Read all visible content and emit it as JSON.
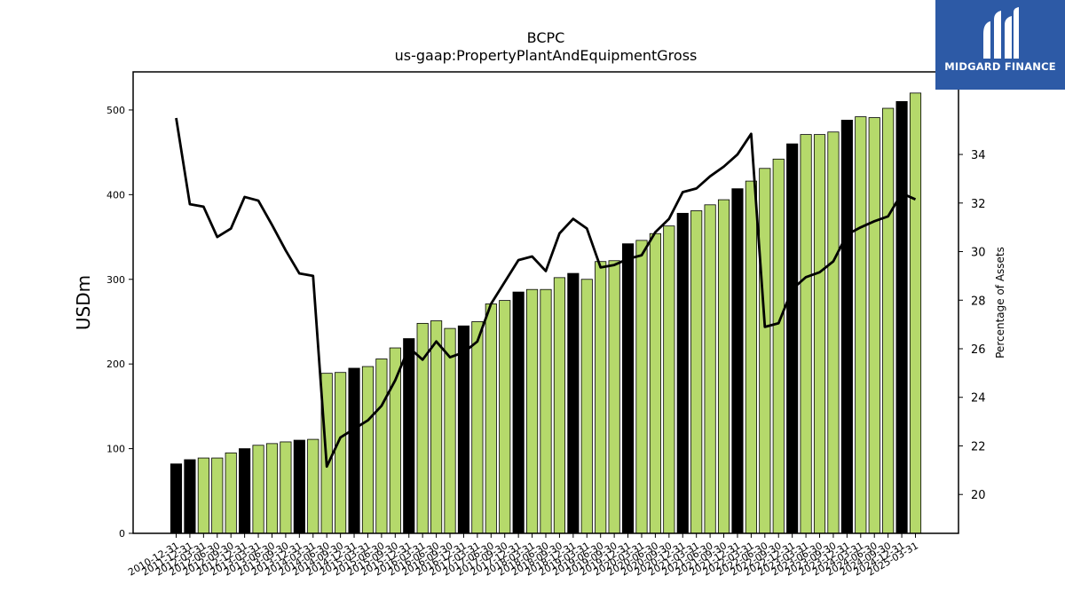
{
  "brand": {
    "name": "MIDGARD FINANCE",
    "bg_color": "#2d5aa6"
  },
  "chart_data": {
    "type": "bar",
    "title": "BCPC",
    "subtitle": "us-gaap:PropertyPlantAndEquipmentGross",
    "ylabel": "USDm",
    "y2label": "Percentage of Assets",
    "ylim": [
      0,
      545
    ],
    "y2lim": [
      18.4,
      37.4
    ],
    "yticks": [
      0,
      100,
      200,
      300,
      400,
      500
    ],
    "y2ticks": [
      20,
      22,
      24,
      26,
      28,
      30,
      32,
      34
    ],
    "grid": false,
    "bar_colors": {
      "annual": "#000000",
      "quarterly": "#b5d96b"
    },
    "categories": [
      "2010-12-31",
      "2011-12-31",
      "2012-03-31",
      "2012-06-30",
      "2012-09-30",
      "2012-12-31",
      "2013-03-31",
      "2013-06-30",
      "2013-09-30",
      "2013-12-31",
      "2014-03-31",
      "2014-06-30",
      "2014-09-30",
      "2014-12-31",
      "2015-03-31",
      "2015-06-30",
      "2015-09-30",
      "2015-12-31",
      "2016-03-31",
      "2016-06-30",
      "2016-09-30",
      "2016-12-31",
      "2017-03-31",
      "2017-06-30",
      "2017-09-30",
      "2017-12-31",
      "2018-03-31",
      "2018-06-30",
      "2018-09-30",
      "2018-12-31",
      "2019-03-31",
      "2019-06-30",
      "2019-09-30",
      "2019-12-31",
      "2020-03-31",
      "2020-06-30",
      "2020-09-30",
      "2020-12-31",
      "2021-03-31",
      "2021-06-30",
      "2021-09-30",
      "2021-12-31",
      "2022-03-31",
      "2022-06-30",
      "2022-09-30",
      "2022-12-31",
      "2023-03-31",
      "2023-06-30",
      "2023-09-30",
      "2023-12-31",
      "2024-03-31",
      "2024-06-30",
      "2024-09-30",
      "2024-12-31",
      "2025-03-31"
    ],
    "bar_period": [
      "annual",
      "annual",
      "quarter",
      "quarter",
      "quarter",
      "annual",
      "quarter",
      "quarter",
      "quarter",
      "annual",
      "quarter",
      "quarter",
      "quarter",
      "annual",
      "quarter",
      "quarter",
      "quarter",
      "annual",
      "quarter",
      "quarter",
      "quarter",
      "annual",
      "quarter",
      "quarter",
      "quarter",
      "annual",
      "quarter",
      "quarter",
      "quarter",
      "annual",
      "quarter",
      "quarter",
      "quarter",
      "annual",
      "quarter",
      "quarter",
      "quarter",
      "annual",
      "quarter",
      "quarter",
      "quarter",
      "annual",
      "quarter",
      "quarter",
      "quarter",
      "annual",
      "quarter",
      "quarter",
      "quarter",
      "annual",
      "quarter",
      "quarter",
      "quarter",
      "annual",
      "quarter"
    ],
    "series": [
      {
        "axis": "left",
        "type": "bar",
        "values": [
          82,
          87,
          89,
          89,
          95,
          100,
          104,
          106,
          108,
          110,
          111,
          189,
          190,
          195,
          197,
          206,
          219,
          230,
          248,
          251,
          242,
          245,
          250,
          271,
          275,
          285,
          288,
          288,
          302,
          307,
          300,
          321,
          322,
          342,
          346,
          354,
          363,
          378,
          381,
          388,
          394,
          407,
          416,
          431,
          442,
          460,
          471,
          471,
          474,
          488,
          492,
          491,
          502,
          510,
          520
        ]
      },
      {
        "axis": "right",
        "type": "line",
        "values": [
          35.5,
          31.95,
          31.85,
          30.6,
          30.95,
          32.25,
          32.1,
          31.1,
          30.05,
          29.1,
          29.0,
          21.15,
          22.35,
          22.7,
          23.05,
          23.65,
          24.7,
          26.05,
          25.55,
          26.3,
          25.65,
          25.85,
          26.3,
          27.85,
          28.75,
          29.65,
          29.8,
          29.2,
          30.75,
          31.35,
          30.95,
          29.35,
          29.45,
          29.7,
          29.85,
          30.8,
          31.35,
          32.45,
          32.6,
          33.1,
          33.5,
          34.0,
          34.85,
          26.9,
          27.05,
          28.45,
          28.95,
          29.15,
          29.6,
          30.7,
          31.0,
          31.25,
          31.45,
          32.4,
          32.15
        ]
      }
    ]
  }
}
